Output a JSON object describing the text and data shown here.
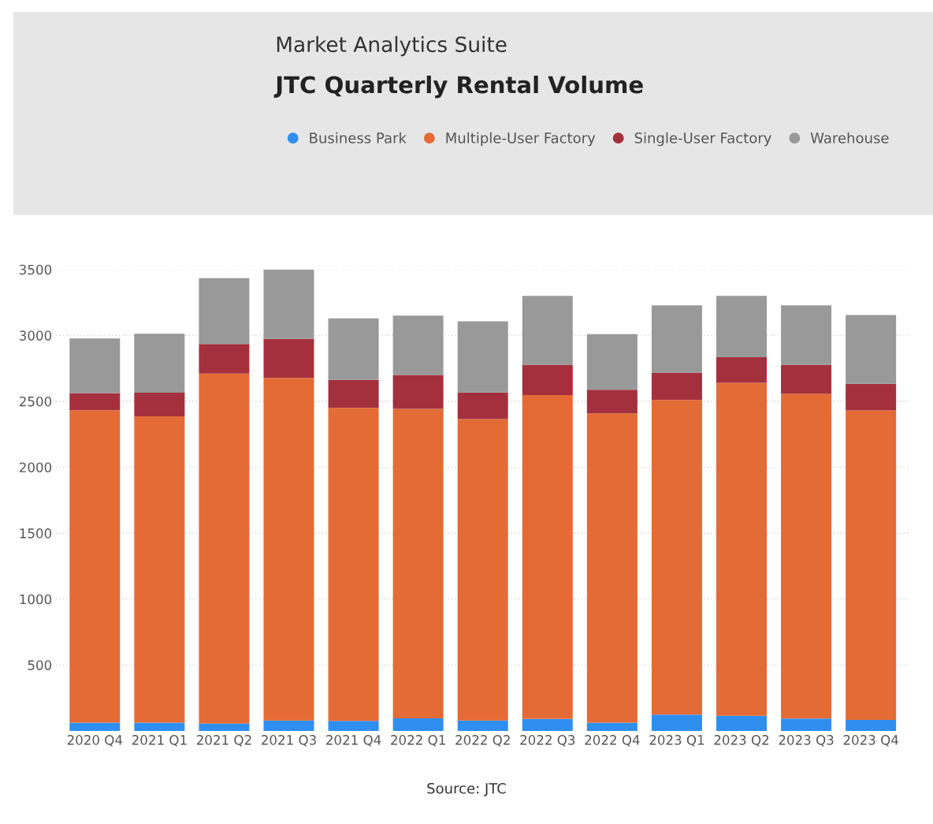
{
  "chart_data": {
    "type": "bar",
    "title": "JTC Quarterly Rental Volume",
    "subtitle": "Market Analytics Suite",
    "categories": [
      "2020 Q4",
      "2021 Q1",
      "2021 Q2",
      "2021 Q3",
      "2021 Q4",
      "2022 Q1",
      "2022 Q2",
      "2022 Q3",
      "2022 Q4",
      "2023 Q1",
      "2023 Q2",
      "2023 Q3",
      "2023 Q4"
    ],
    "stacked": true,
    "series": [
      {
        "name": "Business Park",
        "color": "#2f8ff0",
        "values": [
          63,
          63,
          57,
          79,
          75,
          95,
          79,
          90,
          63,
          123,
          114,
          93,
          83
        ]
      },
      {
        "name": "Multiple-User Factory",
        "color": "#e46b35",
        "values": [
          2369,
          2323,
          2654,
          2599,
          2375,
          2348,
          2286,
          2458,
          2345,
          2387,
          2526,
          2463,
          2347
        ]
      },
      {
        "name": "Single-User Factory",
        "color": "#a4303d",
        "values": [
          131,
          180,
          224,
          295,
          212,
          257,
          202,
          230,
          179,
          208,
          194,
          222,
          202
        ]
      },
      {
        "name": "Warehouse",
        "color": "#999999",
        "values": [
          414,
          447,
          499,
          526,
          467,
          450,
          539,
          521,
          422,
          510,
          465,
          450,
          523
        ]
      }
    ],
    "ylim": [
      0,
      3500
    ],
    "yticks": [
      500,
      1000,
      1500,
      2000,
      2500,
      3000,
      3500
    ],
    "grid": "y",
    "legend": "top",
    "annotations": [
      "Source: JTC"
    ]
  }
}
